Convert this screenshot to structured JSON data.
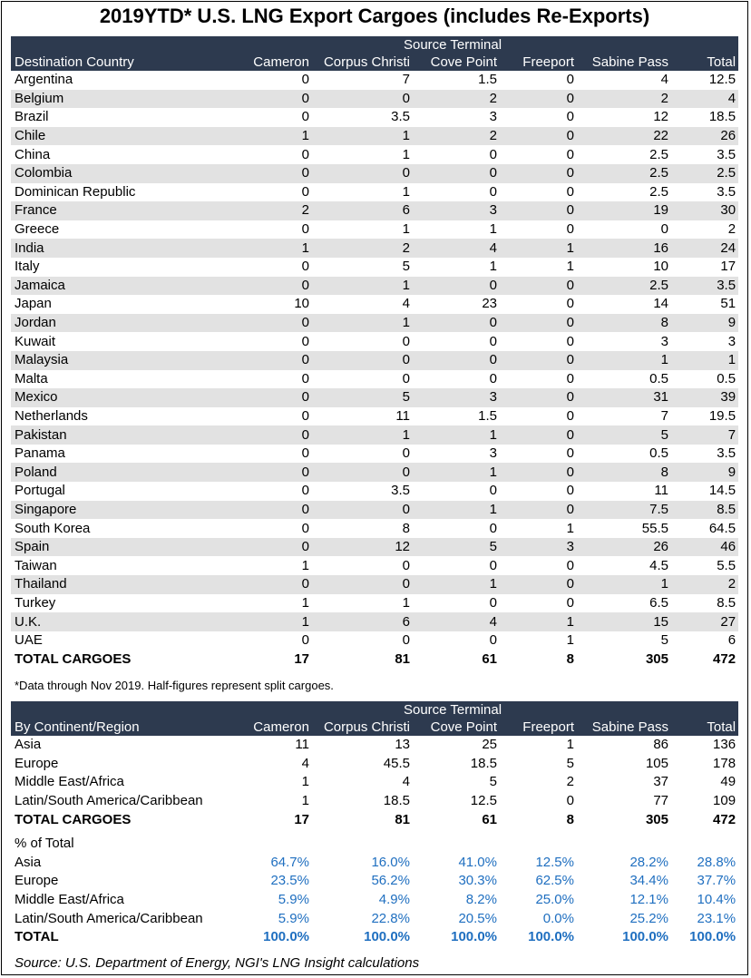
{
  "title": "2019YTD* U.S. LNG Export Cargoes (includes Re-Exports)",
  "header": {
    "group_label": "Source Terminal",
    "terminals": [
      "Cameron",
      "Corpus Christi",
      "Cove Point",
      "Freeport",
      "Sabine Pass",
      "Total"
    ]
  },
  "table1": {
    "first_col_label": "Destination Country",
    "rows": [
      {
        "name": "Argentina",
        "values": [
          "0",
          "7",
          "1.5",
          "0",
          "4",
          "12.5"
        ]
      },
      {
        "name": "Belgium",
        "values": [
          "0",
          "0",
          "2",
          "0",
          "2",
          "4"
        ]
      },
      {
        "name": "Brazil",
        "values": [
          "0",
          "3.5",
          "3",
          "0",
          "12",
          "18.5"
        ]
      },
      {
        "name": "Chile",
        "values": [
          "1",
          "1",
          "2",
          "0",
          "22",
          "26"
        ]
      },
      {
        "name": "China",
        "values": [
          "0",
          "1",
          "0",
          "0",
          "2.5",
          "3.5"
        ]
      },
      {
        "name": "Colombia",
        "values": [
          "0",
          "0",
          "0",
          "0",
          "2.5",
          "2.5"
        ]
      },
      {
        "name": "Dominican Republic",
        "values": [
          "0",
          "1",
          "0",
          "0",
          "2.5",
          "3.5"
        ]
      },
      {
        "name": "France",
        "values": [
          "2",
          "6",
          "3",
          "0",
          "19",
          "30"
        ]
      },
      {
        "name": "Greece",
        "values": [
          "0",
          "1",
          "1",
          "0",
          "0",
          "2"
        ]
      },
      {
        "name": "India",
        "values": [
          "1",
          "2",
          "4",
          "1",
          "16",
          "24"
        ]
      },
      {
        "name": "Italy",
        "values": [
          "0",
          "5",
          "1",
          "1",
          "10",
          "17"
        ]
      },
      {
        "name": "Jamaica",
        "values": [
          "0",
          "1",
          "0",
          "0",
          "2.5",
          "3.5"
        ]
      },
      {
        "name": "Japan",
        "values": [
          "10",
          "4",
          "23",
          "0",
          "14",
          "51"
        ]
      },
      {
        "name": "Jordan",
        "values": [
          "0",
          "1",
          "0",
          "0",
          "8",
          "9"
        ]
      },
      {
        "name": "Kuwait",
        "values": [
          "0",
          "0",
          "0",
          "0",
          "3",
          "3"
        ]
      },
      {
        "name": "Malaysia",
        "values": [
          "0",
          "0",
          "0",
          "0",
          "1",
          "1"
        ]
      },
      {
        "name": "Malta",
        "values": [
          "0",
          "0",
          "0",
          "0",
          "0.5",
          "0.5"
        ]
      },
      {
        "name": "Mexico",
        "values": [
          "0",
          "5",
          "3",
          "0",
          "31",
          "39"
        ]
      },
      {
        "name": "Netherlands",
        "values": [
          "0",
          "11",
          "1.5",
          "0",
          "7",
          "19.5"
        ]
      },
      {
        "name": "Pakistan",
        "values": [
          "0",
          "1",
          "1",
          "0",
          "5",
          "7"
        ]
      },
      {
        "name": "Panama",
        "values": [
          "0",
          "0",
          "3",
          "0",
          "0.5",
          "3.5"
        ]
      },
      {
        "name": "Poland",
        "values": [
          "0",
          "0",
          "1",
          "0",
          "8",
          "9"
        ]
      },
      {
        "name": "Portugal",
        "values": [
          "0",
          "3.5",
          "0",
          "0",
          "11",
          "14.5"
        ]
      },
      {
        "name": "Singapore",
        "values": [
          "0",
          "0",
          "1",
          "0",
          "7.5",
          "8.5"
        ]
      },
      {
        "name": "South Korea",
        "values": [
          "0",
          "8",
          "0",
          "1",
          "55.5",
          "64.5"
        ]
      },
      {
        "name": "Spain",
        "values": [
          "0",
          "12",
          "5",
          "3",
          "26",
          "46"
        ]
      },
      {
        "name": "Taiwan",
        "values": [
          "1",
          "0",
          "0",
          "0",
          "4.5",
          "5.5"
        ]
      },
      {
        "name": "Thailand",
        "values": [
          "0",
          "0",
          "1",
          "0",
          "1",
          "2"
        ]
      },
      {
        "name": "Turkey",
        "values": [
          "1",
          "1",
          "0",
          "0",
          "6.5",
          "8.5"
        ]
      },
      {
        "name": "U.K.",
        "values": [
          "1",
          "6",
          "4",
          "1",
          "15",
          "27"
        ]
      },
      {
        "name": "UAE",
        "values": [
          "0",
          "0",
          "0",
          "1",
          "5",
          "6"
        ]
      }
    ],
    "total": {
      "name": "TOTAL CARGOES",
      "values": [
        "17",
        "81",
        "61",
        "8",
        "305",
        "472"
      ]
    }
  },
  "footnote": "*Data through Nov 2019.  Half-figures represent split cargoes.",
  "table2": {
    "first_col_label": "By Continent/Region",
    "rows": [
      {
        "name": "Asia",
        "values": [
          "11",
          "13",
          "25",
          "1",
          "86",
          "136"
        ]
      },
      {
        "name": "Europe",
        "values": [
          "4",
          "45.5",
          "18.5",
          "5",
          "105",
          "178"
        ]
      },
      {
        "name": "Middle East/Africa",
        "values": [
          "1",
          "4",
          "5",
          "2",
          "37",
          "49"
        ]
      },
      {
        "name": "Latin/South America/Caribbean",
        "values": [
          "1",
          "18.5",
          "12.5",
          "0",
          "77",
          "109"
        ]
      }
    ],
    "total": {
      "name": "TOTAL CARGOES",
      "values": [
        "17",
        "81",
        "61",
        "8",
        "305",
        "472"
      ]
    }
  },
  "percent": {
    "label": "% of Total",
    "rows": [
      {
        "name": "Asia",
        "values": [
          "64.7%",
          "16.0%",
          "41.0%",
          "12.5%",
          "28.2%",
          "28.8%"
        ]
      },
      {
        "name": "Europe",
        "values": [
          "23.5%",
          "56.2%",
          "30.3%",
          "62.5%",
          "34.4%",
          "37.7%"
        ]
      },
      {
        "name": "Middle East/Africa",
        "values": [
          "5.9%",
          "4.9%",
          "8.2%",
          "25.0%",
          "12.1%",
          "10.4%"
        ]
      },
      {
        "name": "Latin/South America/Caribbean",
        "values": [
          "5.9%",
          "22.8%",
          "20.5%",
          "0.0%",
          "25.2%",
          "23.1%"
        ]
      }
    ],
    "total": {
      "name": "TOTAL",
      "values": [
        "100.0%",
        "100.0%",
        "100.0%",
        "100.0%",
        "100.0%",
        "100.0%"
      ]
    }
  },
  "source": "Source: U.S. Department of Energy, NGI's LNG Insight calculations",
  "colors": {
    "header_bg": "#2d3a4f",
    "stripe": "#e2e2e2",
    "percent_text": "#1f6fc0"
  }
}
